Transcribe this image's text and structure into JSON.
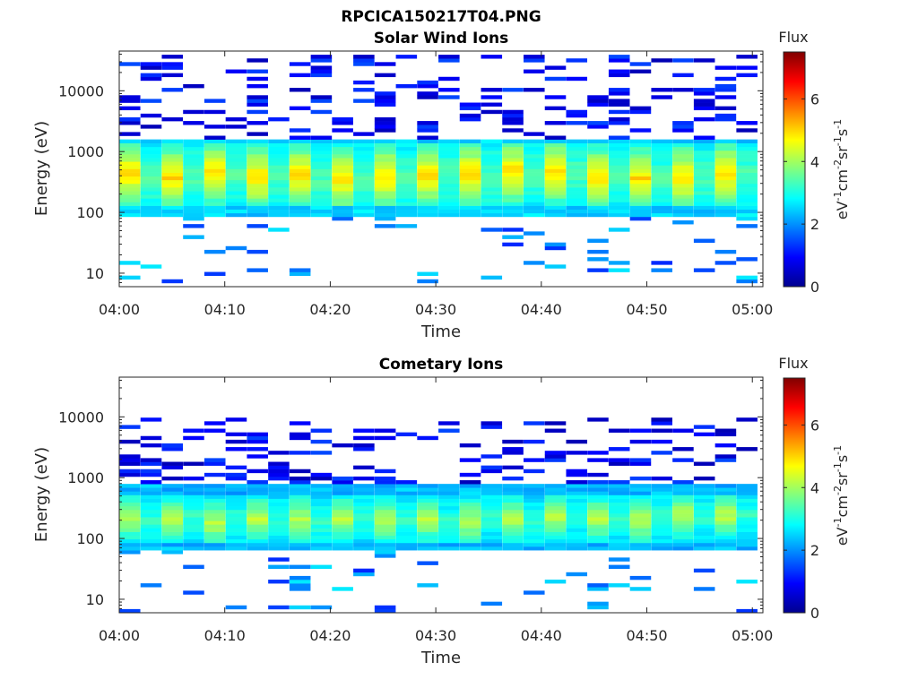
{
  "figure_title": "RPCICA150217T04.PNG",
  "colorbar_colors": [
    "#00008f",
    "#0000ff",
    "#0080ff",
    "#00ffff",
    "#80ff80",
    "#ffff00",
    "#ff8000",
    "#ff0000",
    "#800000"
  ],
  "chart_data": [
    {
      "type": "heatmap",
      "title": "Solar Wind Ions",
      "xlabel": "Time",
      "ylabel": "Energy (eV)",
      "x_ticks": [
        "04:00",
        "04:10",
        "04:20",
        "04:30",
        "04:40",
        "04:50",
        "05:00"
      ],
      "x_range_minutes": [
        0,
        61
      ],
      "y_scale": "log",
      "y_ticks": [
        10,
        100,
        1000,
        10000
      ],
      "y_tick_labels": [
        "10",
        "100",
        "1000",
        "10000"
      ],
      "ylim": [
        6,
        45000
      ],
      "colorbar": {
        "label": "Flux",
        "unit_label": "eV-1cm-2sr-1s-1",
        "ticks": [
          0,
          2,
          4,
          6
        ],
        "range": [
          0,
          7.5
        ],
        "colormap": "jet"
      },
      "n_time_bins": 30,
      "core_energy_range_eV": [
        80,
        1500
      ],
      "peak_flux": 5.0,
      "main_core_energy_eV": [
        130,
        1300
      ],
      "background_flux": 2.6,
      "scatter_high_energy_eV": [
        1500,
        40000
      ],
      "scatter_low_energy_eV": [
        6,
        80
      ]
    },
    {
      "type": "heatmap",
      "title": "Cometary Ions",
      "xlabel": "Time",
      "ylabel": "Energy (eV)",
      "x_ticks": [
        "04:00",
        "04:10",
        "04:20",
        "04:30",
        "04:40",
        "04:50",
        "05:00"
      ],
      "x_range_minutes": [
        0,
        61
      ],
      "y_scale": "log",
      "y_ticks": [
        10,
        100,
        1000,
        10000
      ],
      "y_tick_labels": [
        "10",
        "100",
        "1000",
        "10000"
      ],
      "ylim": [
        6,
        45000
      ],
      "colorbar": {
        "label": "Flux",
        "unit_label": "eV-1cm-2sr-1s-1",
        "ticks": [
          0,
          2,
          4,
          6
        ],
        "range": [
          0,
          7.5
        ],
        "colormap": "jet"
      },
      "n_time_bins": 30,
      "core_energy_range_eV": [
        60,
        800
      ],
      "peak_flux": 4.2,
      "main_core_energy_eV": [
        90,
        500
      ],
      "background_flux": 2.4,
      "scatter_high_energy_eV": [
        800,
        10000
      ],
      "scatter_low_energy_eV": [
        6,
        60
      ]
    }
  ]
}
